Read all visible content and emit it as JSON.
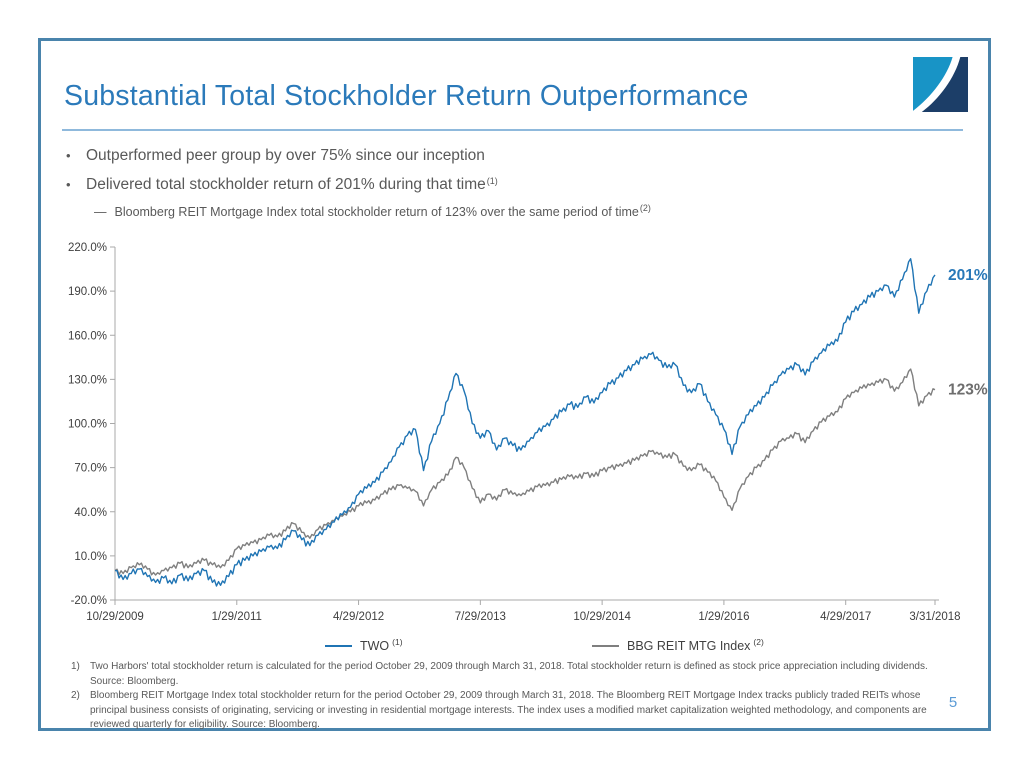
{
  "header": {
    "title": "Substantial Total Stockholder Return Outperformance"
  },
  "bullets": {
    "marker": "•",
    "items": [
      {
        "text": "Outperformed peer group by over 75% since our inception",
        "superscript": ""
      },
      {
        "text": "Delivered total stockholder return of 201% during that time",
        "superscript": "(1)"
      }
    ],
    "sub_item": {
      "marker": "—",
      "text": "Bloomberg REIT Mortgage Index total stockholder return of 123% over the same period of time",
      "superscript": "(2)"
    }
  },
  "chart_data": {
    "type": "line",
    "title": "",
    "xlabel": "",
    "ylabel": "",
    "grid": false,
    "legend_position": "bottom",
    "x_axis": {
      "start_date": "10/29/2009",
      "end_date": "3/31/2018",
      "tick_labels": [
        "10/29/2009",
        "1/29/2011",
        "4/29/2012",
        "7/29/2013",
        "10/29/2014",
        "1/29/2016",
        "4/29/2017",
        "3/31/2018"
      ],
      "tick_month_index": [
        0,
        15,
        30,
        45,
        60,
        75,
        90,
        101
      ]
    },
    "y_axis": {
      "unit": "%",
      "ylim": [
        -20,
        220
      ],
      "tick_values": [
        220,
        190,
        160,
        130,
        100,
        70,
        40,
        10,
        -20
      ],
      "tick_labels": [
        "220.0%",
        "190.0%",
        "160.0%",
        "130.0%",
        "100.0%",
        "70.0%",
        "40.0%",
        "10.0%",
        "-20.0%"
      ]
    },
    "series": [
      {
        "name": "TWO",
        "superscript": "(1)",
        "color": "#1F74B4",
        "label_color": "#2878B8",
        "end_label": "201%",
        "end_value": 201,
        "monthly_values": [
          0,
          -6,
          -2,
          1,
          -4,
          -8,
          -5,
          -9,
          -3,
          -7,
          -2,
          0,
          -8,
          -10,
          -4,
          4,
          7,
          10,
          13,
          16,
          15,
          21,
          27,
          21,
          17,
          24,
          28,
          33,
          38,
          43,
          52,
          56,
          60,
          67,
          74,
          84,
          92,
          96,
          68,
          88,
          100,
          116,
          134,
          122,
          100,
          90,
          95,
          82,
          90,
          85,
          82,
          88,
          94,
          98,
          103,
          108,
          113,
          111,
          118,
          114,
          121,
          127,
          131,
          136,
          140,
          144,
          147,
          143,
          138,
          140,
          126,
          121,
          127,
          115,
          106,
          96,
          79,
          98,
          106,
          112,
          118,
          126,
          133,
          137,
          140,
          133,
          142,
          148,
          153,
          156,
          169,
          176,
          181,
          186,
          190,
          194,
          186,
          198,
          212,
          175,
          190,
          201
        ]
      },
      {
        "name": "BBG REIT MTG Index",
        "superscript": "(2)",
        "color": "#7F7F7F",
        "label_color": "#6E6E6E",
        "end_label": "123%",
        "end_value": 123,
        "monthly_values": [
          0,
          -2,
          2,
          4,
          1,
          -3,
          0,
          2,
          5,
          2,
          5,
          7,
          4,
          2,
          7,
          15,
          17,
          19,
          21,
          24,
          23,
          27,
          32,
          26,
          22,
          28,
          31,
          34,
          37,
          40,
          44,
          46,
          48,
          52,
          55,
          58,
          56,
          54,
          44,
          55,
          60,
          65,
          77,
          70,
          56,
          46,
          52,
          48,
          55,
          52,
          51,
          54,
          57,
          58,
          60,
          62,
          64,
          63,
          66,
          64,
          68,
          70,
          71,
          73,
          75,
          78,
          81,
          79,
          77,
          79,
          71,
          68,
          72,
          67,
          61,
          50,
          41,
          56,
          64,
          70,
          75,
          82,
          88,
          90,
          93,
          87,
          95,
          101,
          105,
          108,
          117,
          121,
          124,
          126,
          128,
          130,
          122,
          128,
          137,
          112,
          119,
          123
        ]
      }
    ]
  },
  "footnotes": [
    {
      "num": "1)",
      "text": "Two Harbors' total stockholder return is calculated for the period October 29, 2009 through March 31, 2018. Total stockholder return is defined as stock price appreciation including dividends. Source: Bloomberg."
    },
    {
      "num": "2)",
      "text": "Bloomberg REIT Mortgage Index total stockholder return for the period October 29, 2009 through March 31, 2018.  The Bloomberg REIT Mortgage Index tracks publicly traded REITs whose principal business consists of originating, servicing or investing in residential mortgage interests.  The index uses a modified market capitalization weighted methodology, and components are reviewed quarterly for eligibility.  Source: Bloomberg."
    }
  ],
  "page_number": "5",
  "colors": {
    "title_blue": "#2B7ABA",
    "frame_border_blue": "#4A84AC",
    "divider_blue": "#8FB9DC",
    "page_number_blue": "#5B9BD5",
    "logo_light_blue": "#1894C6",
    "logo_navy": "#1C3E68",
    "body_text_gray": "#595959",
    "axis_gray": "#A9A9A9",
    "tick_label_gray": "#3F3F3F"
  }
}
